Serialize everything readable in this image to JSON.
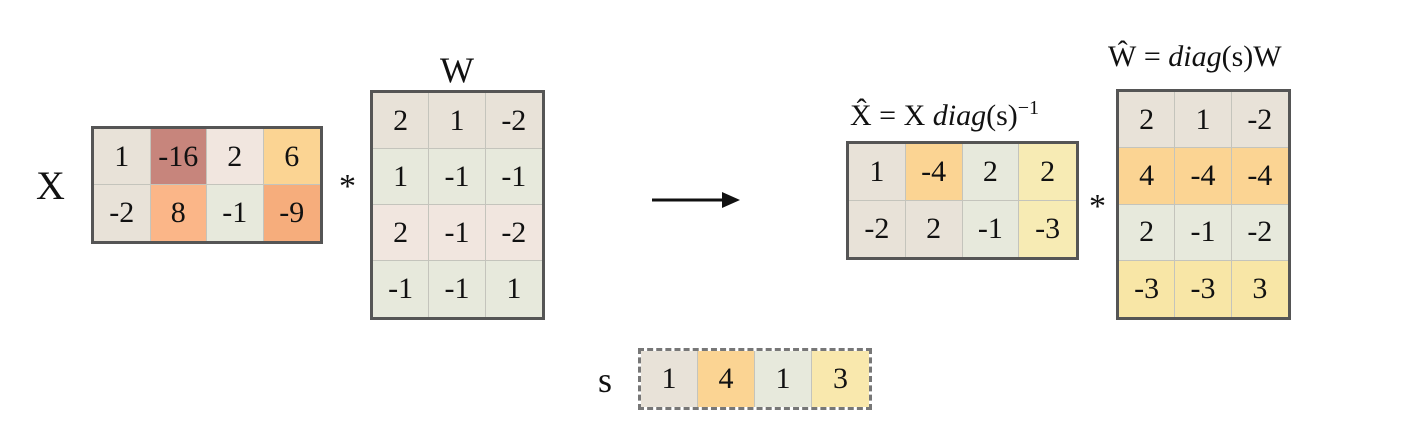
{
  "colors": {
    "c0": "#e8e2d8",
    "c1": "#c7857c",
    "c2": "#fbd493",
    "c3": "#fbb688",
    "c4": "#f6ad7c",
    "c5": "#e7e9dc",
    "c6": "#f1e6df",
    "c7": "#f9e8ad",
    "c8": "#f7ebb4",
    "c9": "#f8e6a6"
  },
  "x_matrix": {
    "label": "X",
    "rows": [
      [
        {
          "v": "1",
          "c": "c0"
        },
        {
          "v": "-16",
          "c": "c1"
        },
        {
          "v": "2",
          "c": "c6"
        },
        {
          "v": "6",
          "c": "c2"
        }
      ],
      [
        {
          "v": "-2",
          "c": "c0"
        },
        {
          "v": "8",
          "c": "c3"
        },
        {
          "v": "-1",
          "c": "c5"
        },
        {
          "v": "-9",
          "c": "c4"
        }
      ]
    ]
  },
  "op1": "*",
  "w_matrix": {
    "label": "W",
    "rows": [
      [
        {
          "v": "2",
          "c": "c0"
        },
        {
          "v": "1",
          "c": "c0"
        },
        {
          "v": "-2",
          "c": "c0"
        }
      ],
      [
        {
          "v": "1",
          "c": "c5"
        },
        {
          "v": "-1",
          "c": "c5"
        },
        {
          "v": "-1",
          "c": "c5"
        }
      ],
      [
        {
          "v": "2",
          "c": "c6"
        },
        {
          "v": "-1",
          "c": "c6"
        },
        {
          "v": "-2",
          "c": "c6"
        }
      ],
      [
        {
          "v": "-1",
          "c": "c5"
        },
        {
          "v": "-1",
          "c": "c5"
        },
        {
          "v": "1",
          "c": "c5"
        }
      ]
    ]
  },
  "xhat_matrix": {
    "label_pre": "X̂ = X ",
    "label_italic": "diag",
    "label_post": "(s)",
    "label_sup": "−1",
    "rows": [
      [
        {
          "v": "1",
          "c": "c0"
        },
        {
          "v": "-4",
          "c": "c2"
        },
        {
          "v": "2",
          "c": "c5"
        },
        {
          "v": "2",
          "c": "c8"
        }
      ],
      [
        {
          "v": "-2",
          "c": "c0"
        },
        {
          "v": "2",
          "c": "c0"
        },
        {
          "v": "-1",
          "c": "c5"
        },
        {
          "v": "-3",
          "c": "c8"
        }
      ]
    ]
  },
  "op2": "*",
  "what_matrix": {
    "label_pre": "Ŵ = ",
    "label_italic": "diag",
    "label_post": "(s)W",
    "rows": [
      [
        {
          "v": "2",
          "c": "c0"
        },
        {
          "v": "1",
          "c": "c0"
        },
        {
          "v": "-2",
          "c": "c0"
        }
      ],
      [
        {
          "v": "4",
          "c": "c2"
        },
        {
          "v": "-4",
          "c": "c2"
        },
        {
          "v": "-4",
          "c": "c2"
        }
      ],
      [
        {
          "v": "2",
          "c": "c5"
        },
        {
          "v": "-1",
          "c": "c5"
        },
        {
          "v": "-2",
          "c": "c5"
        }
      ],
      [
        {
          "v": "-3",
          "c": "c9"
        },
        {
          "v": "-3",
          "c": "c9"
        },
        {
          "v": "3",
          "c": "c9"
        }
      ]
    ]
  },
  "s_vector": {
    "label": "s",
    "cells": [
      {
        "v": "1",
        "c": "c0"
      },
      {
        "v": "4",
        "c": "c2"
      },
      {
        "v": "1",
        "c": "c5"
      },
      {
        "v": "3",
        "c": "c7"
      }
    ]
  }
}
